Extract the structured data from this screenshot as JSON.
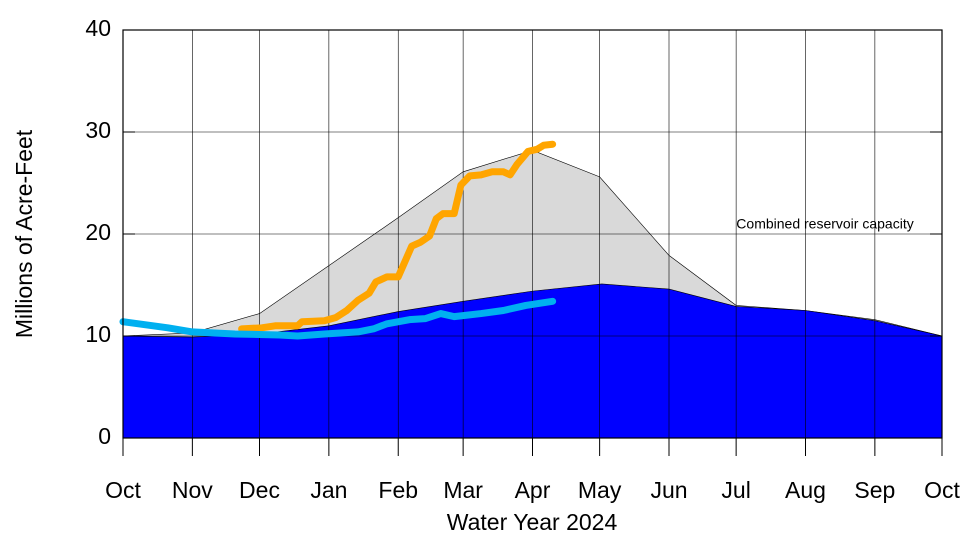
{
  "chart_data": {
    "type": "line",
    "ylabel": "Millions of Acre-Feet",
    "xlabel": "Water Year 2024",
    "annotation": "Combined reservoir capacity",
    "xlim": [
      0,
      366
    ],
    "ylim": [
      0,
      40
    ],
    "yticks": [
      0,
      10,
      20,
      30,
      40
    ],
    "xticks": [
      {
        "value": 0,
        "label": "Oct"
      },
      {
        "value": 31,
        "label": "Nov"
      },
      {
        "value": 61,
        "label": "Dec"
      },
      {
        "value": 92,
        "label": "Jan"
      },
      {
        "value": 123,
        "label": "Feb"
      },
      {
        "value": 152,
        "label": "Mar"
      },
      {
        "value": 183,
        "label": "Apr"
      },
      {
        "value": 213,
        "label": "May"
      },
      {
        "value": 244,
        "label": "Jun"
      },
      {
        "value": 274,
        "label": "Jul"
      },
      {
        "value": 305,
        "label": "Aug"
      },
      {
        "value": 336,
        "label": "Sep"
      },
      {
        "value": 366,
        "label": "Oct"
      }
    ],
    "grid": true,
    "series": [
      {
        "style": "area",
        "color": "#d9d9d9",
        "x": [
          0,
          31,
          61,
          123,
          152,
          183,
          213,
          244,
          274,
          305,
          336,
          366
        ],
        "values": [
          10.0,
          10.3,
          12.2,
          21.6,
          26.1,
          28.2,
          25.6,
          17.9,
          13.0,
          12.5,
          11.6,
          10.0
        ]
      },
      {
        "style": "area",
        "color": "#0000ff",
        "x": [
          0,
          31,
          61,
          92,
          123,
          152,
          183,
          214,
          244,
          274,
          305,
          336,
          366
        ],
        "values": [
          10.0,
          9.9,
          10.2,
          11.0,
          12.4,
          13.4,
          14.4,
          15.1,
          14.6,
          12.9,
          12.5,
          11.5,
          10.0
        ]
      },
      {
        "style": "line",
        "color": "#ffa500",
        "x": [
          53,
          62,
          68,
          78,
          80,
          90,
          95,
          100,
          105,
          110,
          113,
          118,
          123,
          126,
          129,
          133,
          137,
          140,
          143,
          148,
          151,
          155,
          160,
          165,
          170,
          173,
          176,
          181,
          185,
          188,
          192
        ],
        "values": [
          10.7,
          10.8,
          11.0,
          11.0,
          11.4,
          11.5,
          11.8,
          12.5,
          13.5,
          14.2,
          15.3,
          15.8,
          15.8,
          17.3,
          18.8,
          19.2,
          19.8,
          21.5,
          22.0,
          22.0,
          24.8,
          25.7,
          25.8,
          26.1,
          26.1,
          25.8,
          26.8,
          28.1,
          28.3,
          28.7,
          28.8
        ]
      },
      {
        "style": "line",
        "color": "#00b0f0",
        "x": [
          0,
          20,
          31,
          50,
          70,
          78,
          90,
          105,
          112,
          118,
          128,
          135,
          142,
          148,
          160,
          170,
          180,
          192
        ],
        "values": [
          11.4,
          10.8,
          10.4,
          10.2,
          10.1,
          10.0,
          10.2,
          10.4,
          10.7,
          11.2,
          11.6,
          11.7,
          12.2,
          11.9,
          12.2,
          12.5,
          13.0,
          13.4
        ]
      }
    ]
  }
}
